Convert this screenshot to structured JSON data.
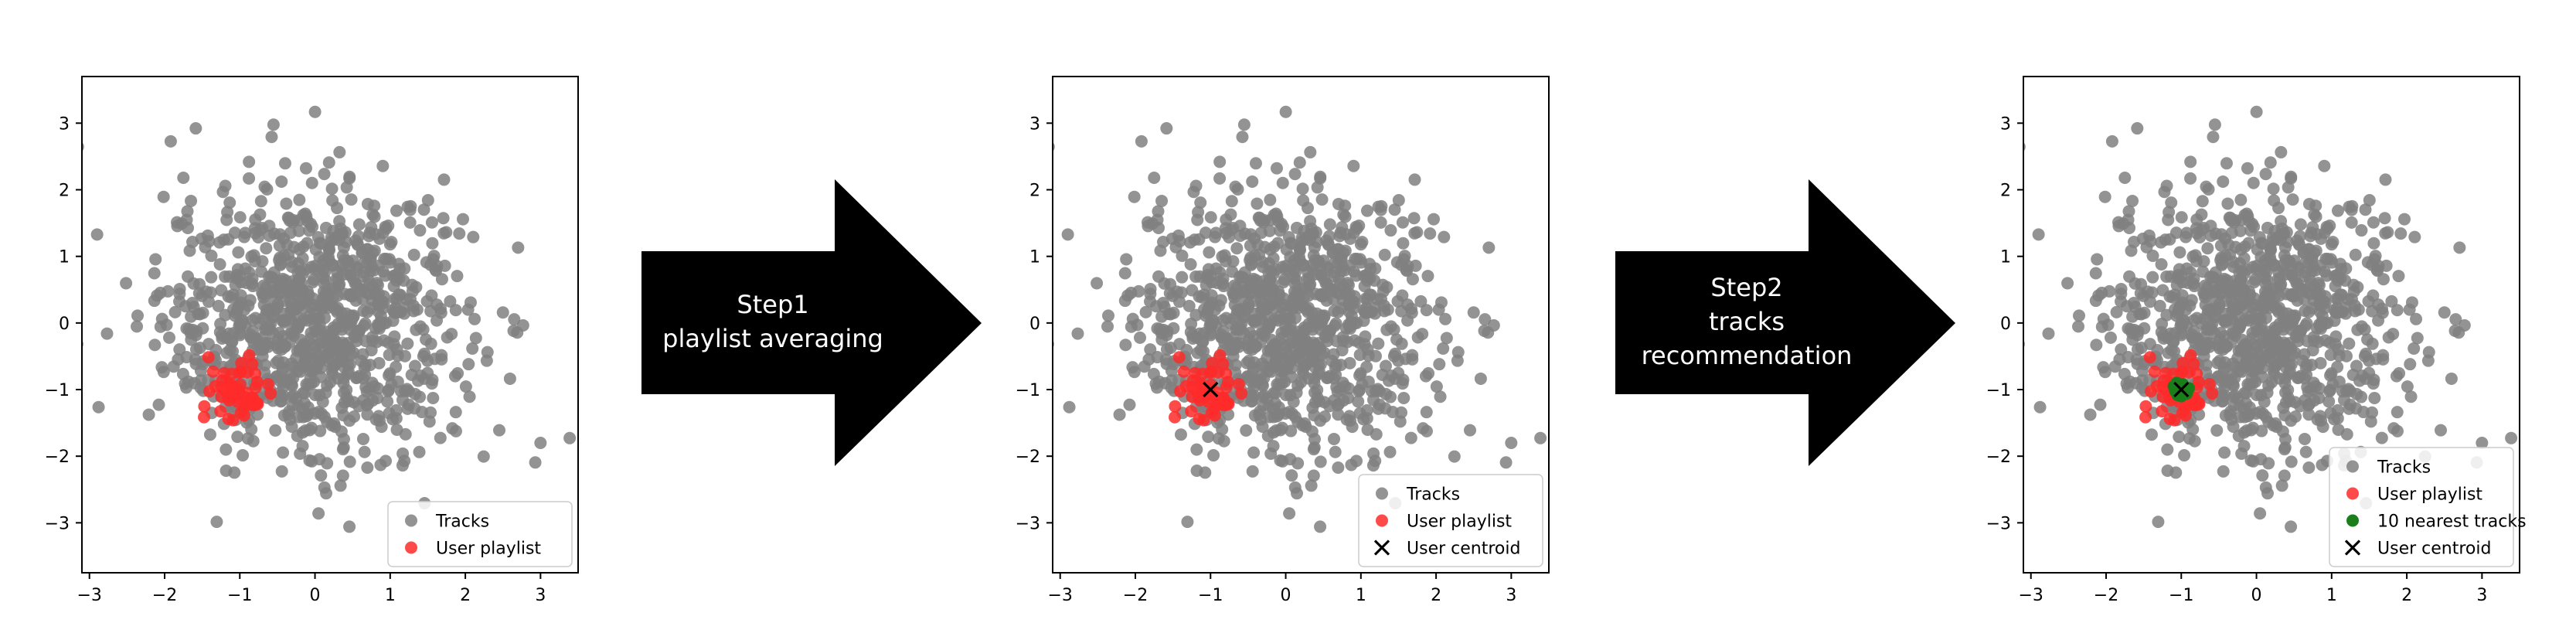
{
  "colors": {
    "tracks": "#808080",
    "playlist": "#ff2a2a",
    "nearest": "#1a7f1a",
    "centroid": "#000000",
    "arrow": "#000000",
    "arrow_text": "#ffffff"
  },
  "arrows": [
    {
      "lines": [
        "Step1",
        "playlist averaging"
      ]
    },
    {
      "lines": [
        "Step2",
        "tracks",
        "recommendation"
      ]
    }
  ],
  "chart_data": [
    {
      "type": "scatter",
      "xlim": [
        -3.1,
        3.5
      ],
      "ylim": [
        -3.75,
        3.7
      ],
      "xticks": [
        -3,
        -2,
        -1,
        0,
        1,
        2,
        3
      ],
      "yticks": [
        -3,
        -2,
        -1,
        0,
        1,
        2,
        3
      ],
      "grid": false,
      "legend_position": "lower-right",
      "series": [
        {
          "name": "Tracks",
          "kind": "tracks",
          "n": 1000,
          "center": [
            0,
            0
          ],
          "spread": 1.0
        },
        {
          "name": "User playlist",
          "kind": "playlist",
          "n": 50,
          "center": [
            -1,
            -1
          ],
          "spread": 0.22
        }
      ]
    },
    {
      "type": "scatter",
      "xlim": [
        -3.1,
        3.5
      ],
      "ylim": [
        -3.75,
        3.7
      ],
      "xticks": [
        -3,
        -2,
        -1,
        0,
        1,
        2,
        3
      ],
      "yticks": [
        -3,
        -2,
        -1,
        0,
        1,
        2,
        3
      ],
      "grid": false,
      "legend_position": "lower-right",
      "series": [
        {
          "name": "Tracks",
          "kind": "tracks",
          "n": 1000,
          "center": [
            0,
            0
          ],
          "spread": 1.0
        },
        {
          "name": "User playlist",
          "kind": "playlist",
          "n": 50,
          "center": [
            -1,
            -1
          ],
          "spread": 0.22
        },
        {
          "name": "User centroid",
          "kind": "centroid",
          "points": [
            [
              -1.0,
              -1.0
            ]
          ]
        }
      ]
    },
    {
      "type": "scatter",
      "xlim": [
        -3.1,
        3.5
      ],
      "ylim": [
        -3.75,
        3.7
      ],
      "xticks": [
        -3,
        -2,
        -1,
        0,
        1,
        2,
        3
      ],
      "yticks": [
        -3,
        -2,
        -1,
        0,
        1,
        2,
        3
      ],
      "grid": false,
      "legend_position": "lower-right",
      "series": [
        {
          "name": "Tracks",
          "kind": "tracks",
          "n": 1000,
          "center": [
            0,
            0
          ],
          "spread": 1.0
        },
        {
          "name": "User playlist",
          "kind": "playlist",
          "n": 50,
          "center": [
            -1,
            -1
          ],
          "spread": 0.22
        },
        {
          "name": "10 nearest tracks",
          "kind": "nearest",
          "points": [
            [
              -1.02,
              -0.96
            ],
            [
              -0.95,
              -1.04
            ],
            [
              -1.08,
              -1.02
            ],
            [
              -0.98,
              -0.92
            ],
            [
              -1.05,
              -1.08
            ],
            [
              -0.9,
              -0.98
            ],
            [
              -1.1,
              -0.95
            ],
            [
              -1.0,
              -1.1
            ],
            [
              -0.93,
              -1.06
            ],
            [
              -1.06,
              -0.9
            ]
          ]
        },
        {
          "name": "User centroid",
          "kind": "centroid",
          "points": [
            [
              -1.0,
              -1.0
            ]
          ]
        }
      ]
    }
  ]
}
